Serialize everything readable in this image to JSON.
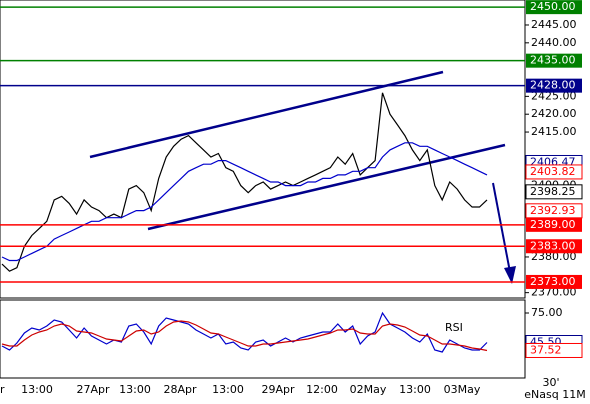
{
  "chart_data": {
    "type": "line",
    "ylim": [
      2368.5,
      2452
    ],
    "yticks": [
      {
        "value": 2370,
        "label": "2370.00"
      },
      {
        "value": 2380,
        "label": "2380.00"
      },
      {
        "value": 2400,
        "label": "2400.00"
      },
      {
        "value": 2415,
        "label": "2415.00"
      },
      {
        "value": 2420,
        "label": "2420.00"
      },
      {
        "value": 2425,
        "label": "2425.00"
      },
      {
        "value": 2440,
        "label": "2440.00"
      },
      {
        "value": 2445,
        "label": "2445.00"
      }
    ],
    "series": [
      {
        "color": "#000000",
        "values": [
          2378,
          2376,
          2377,
          2383,
          2386,
          2388,
          2390,
          2396,
          2397,
          2395,
          2392,
          2396,
          2394,
          2393,
          2391,
          2392,
          2391,
          2399,
          2400,
          2398,
          2393,
          2402,
          2408,
          2411,
          2413,
          2414,
          2412,
          2410,
          2408,
          2409,
          2405,
          2404,
          2400,
          2398,
          2400,
          2401,
          2399,
          2400,
          2401,
          2400,
          2401,
          2402,
          2403,
          2404,
          2405,
          2408,
          2406,
          2409,
          2403,
          2405,
          2407,
          2426,
          2420,
          2417,
          2414,
          2410,
          2407,
          2410,
          2400,
          2396,
          2401,
          2399,
          2396,
          2394,
          2394,
          2396
        ]
      },
      {
        "color": "#0000cc",
        "values": [
          2380,
          2379,
          2379,
          2380,
          2381,
          2382,
          2383,
          2385,
          2386,
          2387,
          2388,
          2389,
          2390,
          2390,
          2391,
          2391,
          2391,
          2392,
          2393,
          2393,
          2394,
          2396,
          2398,
          2400,
          2402,
          2404,
          2405,
          2406,
          2406,
          2407,
          2407,
          2406,
          2405,
          2404,
          2403,
          2402,
          2401,
          2401,
          2400,
          2400,
          2400,
          2401,
          2401,
          2402,
          2402,
          2403,
          2403,
          2404,
          2404,
          2405,
          2405,
          2408,
          2410,
          2411,
          2412,
          2412,
          2411,
          2411,
          2410,
          2409,
          2408,
          2407,
          2406,
          2405,
          2404,
          2403
        ]
      }
    ],
    "levels": [
      {
        "value": 2450,
        "label": "2450.00",
        "color": "#008000",
        "line": true
      },
      {
        "value": 2435,
        "label": "2435.00",
        "color": "#008000",
        "line": true
      },
      {
        "value": 2428,
        "label": "2428.00",
        "color": "#00008b",
        "line": true
      },
      {
        "value": 2406.47,
        "label": "2406.47",
        "color": "#00008b",
        "line": false
      },
      {
        "value": 2403.82,
        "label": "2403.82",
        "color": "#ff0000",
        "line": false
      },
      {
        "value": 2398.25,
        "label": "2398.25",
        "color": "#000000",
        "line": false
      },
      {
        "value": 2392.93,
        "label": "2392.93",
        "color": "#ff0000",
        "line": false
      },
      {
        "value": 2389,
        "label": "2389.00",
        "color": "#ff0000",
        "line": true
      },
      {
        "value": 2383,
        "label": "2383.00",
        "color": "#ff0000",
        "line": true
      },
      {
        "value": 2373,
        "label": "2373.00",
        "color": "#ff0000",
        "line": true
      }
    ],
    "x_labels": [
      "r",
      "13:00",
      "27Apr",
      "13:00",
      "28Apr",
      "13:00",
      "29Apr",
      "12:00",
      "02May",
      "13:00",
      "03May"
    ],
    "rsi": {
      "label": "RSI",
      "ylim": [
        10,
        88
      ],
      "yticks": [
        {
          "value": 75,
          "label": "75.00"
        }
      ],
      "series": [
        {
          "color": "#0000cc",
          "values": [
            42,
            38,
            45,
            55,
            60,
            58,
            62,
            68,
            66,
            58,
            50,
            60,
            52,
            48,
            44,
            48,
            46,
            62,
            64,
            56,
            44,
            62,
            70,
            68,
            66,
            64,
            58,
            54,
            50,
            54,
            44,
            46,
            40,
            38,
            46,
            48,
            42,
            46,
            50,
            46,
            50,
            52,
            54,
            56,
            56,
            64,
            56,
            62,
            44,
            52,
            56,
            75,
            64,
            60,
            56,
            50,
            46,
            54,
            38,
            36,
            48,
            44,
            40,
            38,
            38,
            45.5
          ]
        },
        {
          "color": "#cc0000",
          "values": [
            44,
            42,
            42,
            48,
            53,
            56,
            58,
            62,
            64,
            62,
            57,
            56,
            55,
            52,
            49,
            48,
            47,
            52,
            57,
            58,
            54,
            56,
            62,
            66,
            67,
            66,
            63,
            59,
            55,
            54,
            51,
            48,
            45,
            42,
            42,
            44,
            44,
            45,
            46,
            47,
            48,
            49,
            51,
            53,
            55,
            58,
            58,
            59,
            55,
            54,
            54,
            62,
            64,
            63,
            61,
            57,
            53,
            52,
            48,
            44,
            44,
            43,
            42,
            40,
            39,
            37.52
          ]
        }
      ],
      "levels": [
        {
          "value": 45.5,
          "label": "45.50",
          "color": "#00008b"
        },
        {
          "value": 37.52,
          "label": "37.52",
          "color": "#ff0000"
        }
      ]
    },
    "footer": [
      "30'",
      "eNasq 11M"
    ]
  }
}
